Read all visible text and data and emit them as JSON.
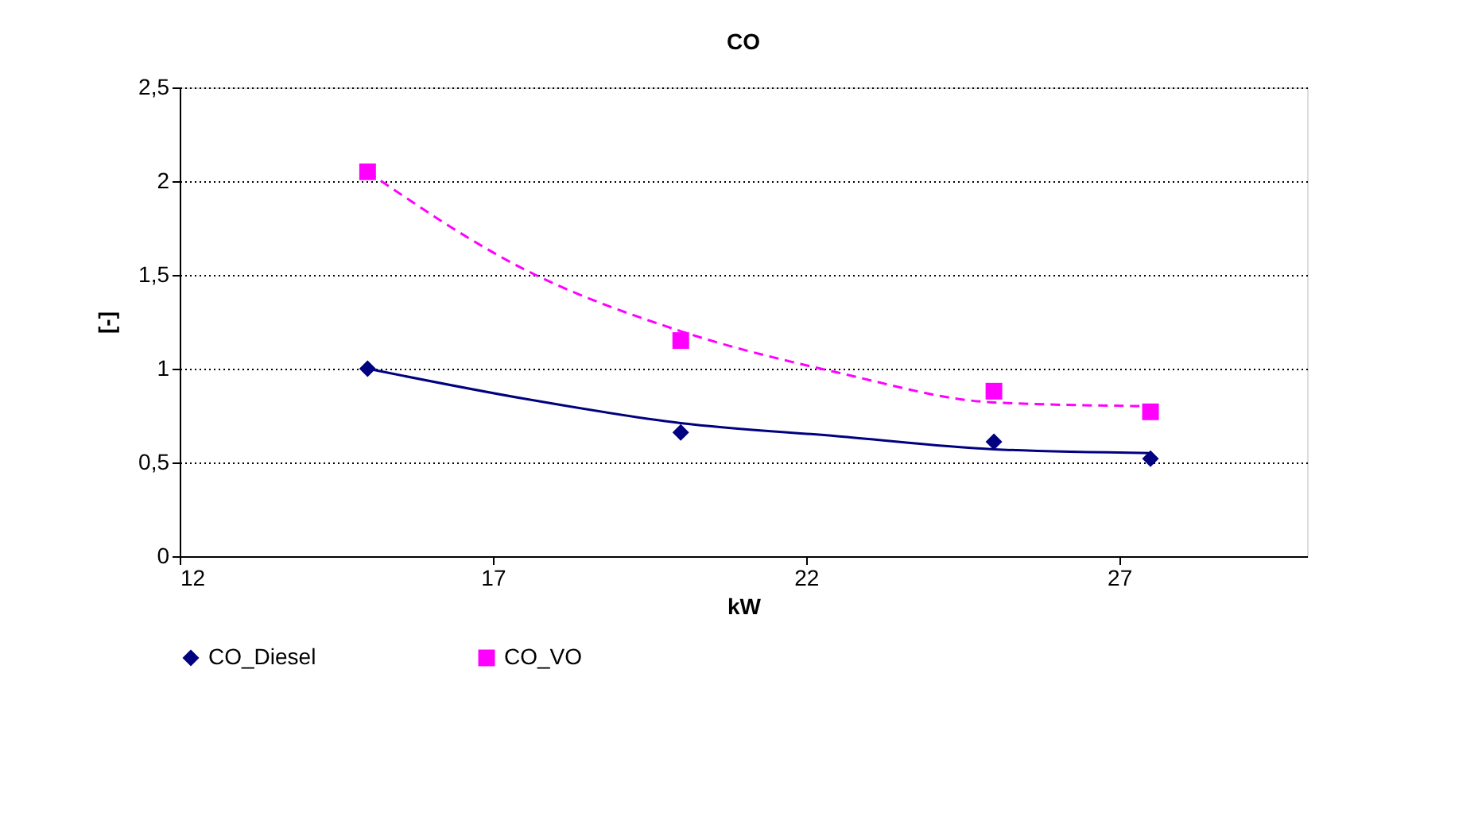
{
  "chart_data": {
    "type": "scatter",
    "title": "CO",
    "xlabel": "kW",
    "ylabel": "[-]",
    "xlim": [
      12,
      30
    ],
    "xticks": [
      12,
      17,
      22,
      27
    ],
    "ylim": [
      0,
      2.5
    ],
    "yticks": [
      0,
      {
        "value": 0.5,
        "label": "0,5"
      },
      1,
      {
        "value": 1.5,
        "label": "1,5"
      },
      2,
      {
        "value": 2.5,
        "label": "2,5"
      }
    ],
    "grid": "y",
    "legend": "bottom",
    "series": [
      {
        "name": "CO_Diesel",
        "color": "#000080",
        "marker": "diamond",
        "x": [
          15,
          20,
          25,
          27.5
        ],
        "values": [
          1.0,
          0.66,
          0.61,
          0.52
        ]
      },
      {
        "name": "CO_VO",
        "color": "#ff00ff",
        "marker": "square",
        "x": [
          15,
          20,
          25,
          27.5
        ],
        "values": [
          2.05,
          1.15,
          0.88,
          0.77
        ]
      },
      {
        "type": "line",
        "color": "#000080",
        "line_style": "solid",
        "x": [
          15,
          17.5,
          20,
          22.5,
          25,
          27.5
        ],
        "values": [
          1.0,
          0.84,
          0.71,
          0.64,
          0.57,
          0.55
        ]
      },
      {
        "type": "line",
        "color": "#ff00ff",
        "line_style": "dashed",
        "x": [
          15,
          17.5,
          20,
          22.5,
          25,
          27.5
        ],
        "values": [
          2.05,
          1.53,
          1.2,
          0.98,
          0.82,
          0.8
        ]
      }
    ]
  }
}
